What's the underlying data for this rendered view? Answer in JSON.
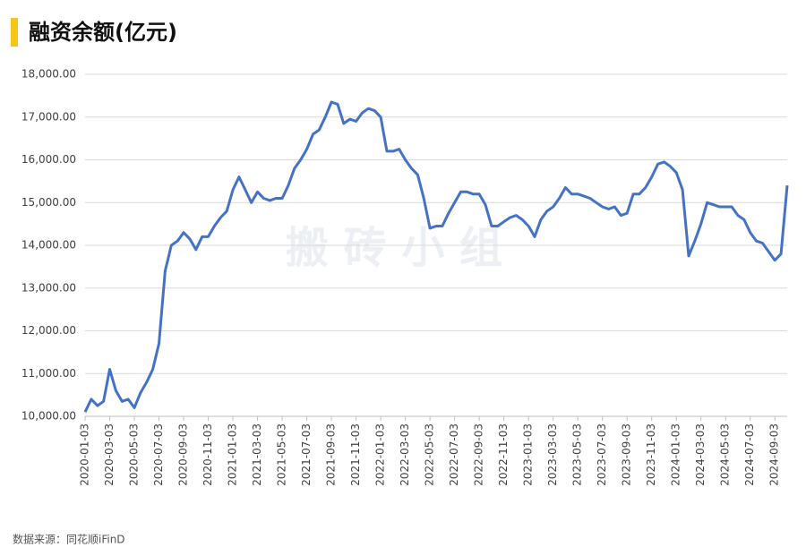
{
  "chart_data": {
    "type": "line",
    "title": "融资余额(亿元)",
    "watermark": "搬 砖 小 组",
    "source": "数据来源：同花顺iFinD",
    "categories": [
      "2020-01-03",
      null,
      null,
      null,
      "2020-03-03",
      null,
      null,
      null,
      "2020-05-03",
      null,
      null,
      null,
      "2020-07-03",
      null,
      null,
      null,
      "2020-09-03",
      null,
      null,
      null,
      "2020-11-03",
      null,
      null,
      null,
      "2021-01-03",
      null,
      null,
      null,
      "2021-03-03",
      null,
      null,
      null,
      "2021-05-03",
      null,
      null,
      null,
      "2021-07-03",
      null,
      null,
      null,
      "2021-09-03",
      null,
      null,
      null,
      "2021-11-03",
      null,
      null,
      null,
      "2022-01-03",
      null,
      null,
      null,
      "2022-03-03",
      null,
      null,
      null,
      "2022-05-03",
      null,
      null,
      null,
      "2022-07-03",
      null,
      null,
      null,
      "2022-09-03",
      null,
      null,
      null,
      "2022-11-03",
      null,
      null,
      null,
      "2023-01-03",
      null,
      null,
      null,
      "2023-03-03",
      null,
      null,
      null,
      "2023-05-03",
      null,
      null,
      null,
      "2023-07-03",
      null,
      null,
      null,
      "2023-09-03",
      null,
      null,
      null,
      "2023-11-03",
      null,
      null,
      null,
      "2024-01-03",
      null,
      null,
      null,
      "2024-03-03",
      null,
      null,
      null,
      "2024-05-03",
      null,
      null,
      null,
      "2024-07-03",
      null,
      null,
      null,
      "2024-09-03",
      null,
      null
    ],
    "series": [
      {
        "name": "融资余额",
        "color": "#4472c4",
        "values": [
          10100,
          10400,
          10250,
          10350,
          11100,
          10600,
          10350,
          10400,
          10200,
          10550,
          10800,
          11100,
          11700,
          13400,
          14000,
          14100,
          14300,
          14150,
          13900,
          14200,
          14200,
          14450,
          14650,
          14800,
          15300,
          15600,
          15300,
          15000,
          15250,
          15100,
          15050,
          15100,
          15100,
          15400,
          15800,
          16000,
          16250,
          16600,
          16700,
          17000,
          17350,
          17300,
          16850,
          16950,
          16900,
          17100,
          17200,
          17150,
          17000,
          16200,
          16200,
          16250,
          16000,
          15800,
          15650,
          15100,
          14400,
          14450,
          14450,
          14750,
          15000,
          15250,
          15250,
          15200,
          15200,
          14950,
          14450,
          14450,
          14550,
          14650,
          14700,
          14600,
          14450,
          14200,
          14600,
          14800,
          14900,
          15100,
          15350,
          15200,
          15200,
          15150,
          15100,
          15000,
          14900,
          14850,
          14900,
          14700,
          14750,
          15200,
          15200,
          15350,
          15600,
          15900,
          15950,
          15850,
          15700,
          15300,
          13750,
          14100,
          14500,
          15000,
          14950,
          14900,
          14900,
          14900,
          14700,
          14600,
          14300,
          14100,
          14050,
          13850,
          13650,
          13800,
          15400
        ]
      }
    ],
    "ylim": [
      10000,
      18000
    ],
    "yticks": [
      {
        "value": 10000,
        "label": "10,000.00"
      },
      {
        "value": 11000,
        "label": "11,000.00"
      },
      {
        "value": 12000,
        "label": "12,000.00"
      },
      {
        "value": 13000,
        "label": "13,000.00"
      },
      {
        "value": 14000,
        "label": "14,000.00"
      },
      {
        "value": 15000,
        "label": "15,000.00"
      },
      {
        "value": 16000,
        "label": "16,000.00"
      },
      {
        "value": 17000,
        "label": "17,000.00"
      },
      {
        "value": 18000,
        "label": "18,000.00"
      }
    ],
    "grid": true
  }
}
